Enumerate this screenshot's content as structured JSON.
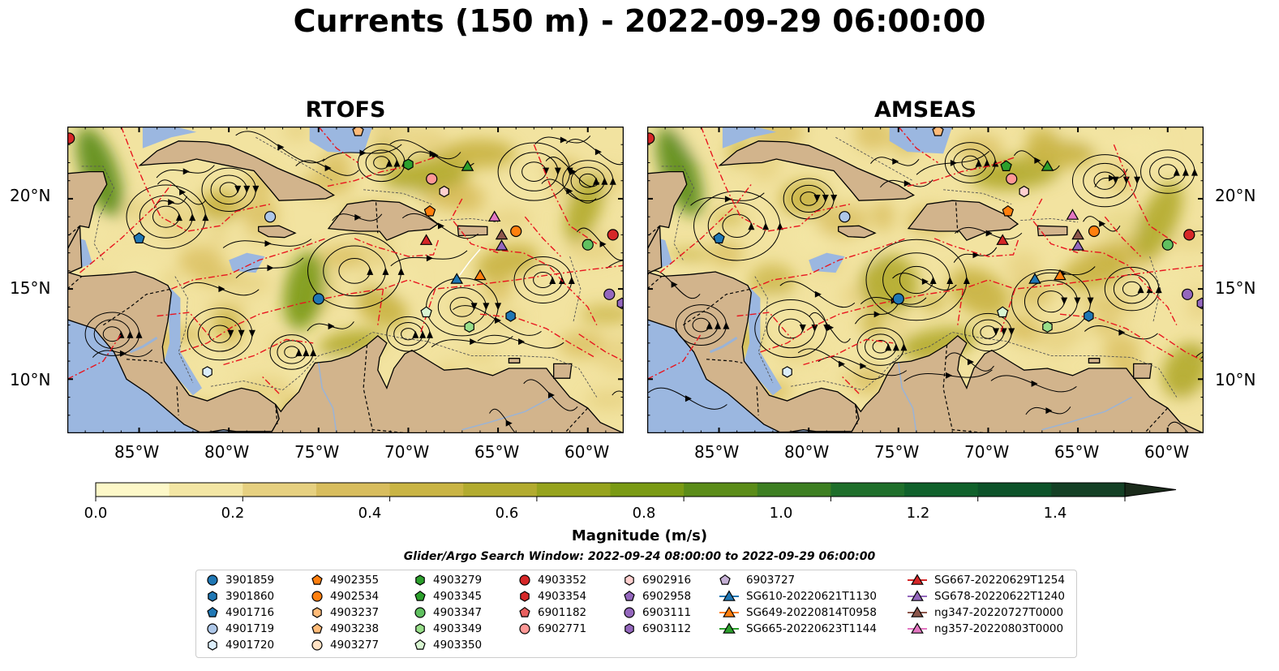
{
  "title": "Currents (150 m) - 2022-09-29 06:00:00",
  "panels": [
    {
      "title": "RTOFS"
    },
    {
      "title": "AMSEAS"
    }
  ],
  "map": {
    "lon_ticks": [
      "85°W",
      "80°W",
      "75°W",
      "70°W",
      "65°W",
      "60°W"
    ],
    "lat_ticks": [
      "20°N",
      "15°N",
      "10°N"
    ],
    "colors": {
      "land": "#d2b48c",
      "water_deep": "#9bb7e0",
      "coastline": "#000000",
      "eez_boundary": "#e8161f",
      "streamline": "#000000"
    }
  },
  "colorbar": {
    "label": "Magnitude (m/s)",
    "ticks": [
      "0.0",
      "0.2",
      "0.4",
      "0.6",
      "0.8",
      "1.0",
      "1.2",
      "1.4"
    ],
    "range": [
      0.0,
      1.5
    ],
    "extend": "max",
    "colors": [
      "#fdf8c8",
      "#f3e6a4",
      "#e6d080",
      "#d8bd5e",
      "#c9b444",
      "#b2ab2f",
      "#96a31d",
      "#7a9a14",
      "#5b8c19",
      "#3d7f22",
      "#1f6f2b",
      "#10612b",
      "#0c5229",
      "#144025",
      "#18331f",
      "#1a2a1a"
    ]
  },
  "search_window": "Glider/Argo Search Window: 2022-09-24 08:00:00 to 2022-09-29 06:00:00",
  "legend": {
    "columns": [
      [
        {
          "label": "3901859",
          "marker": "circle",
          "color": "#1f77b4"
        },
        {
          "label": "3901860",
          "marker": "hexagon",
          "color": "#1f77b4"
        },
        {
          "label": "4901716",
          "marker": "pentagon",
          "color": "#1f77b4"
        },
        {
          "label": "4901719",
          "marker": "circle",
          "color": "#aec7e8"
        },
        {
          "label": "4901720",
          "marker": "hexagon",
          "color": "#dceefa"
        }
      ],
      [
        {
          "label": "4902355",
          "marker": "pentagon",
          "color": "#ff7f0e"
        },
        {
          "label": "4902534",
          "marker": "circle",
          "color": "#ff7f0e"
        },
        {
          "label": "4903237",
          "marker": "hexagon",
          "color": "#ffbb78"
        },
        {
          "label": "4903238",
          "marker": "pentagon",
          "color": "#ffbb78"
        },
        {
          "label": "4903277",
          "marker": "circle",
          "color": "#ffe2c4"
        }
      ],
      [
        {
          "label": "4903279",
          "marker": "hexagon",
          "color": "#2ca02c"
        },
        {
          "label": "4903345",
          "marker": "pentagon",
          "color": "#2ca02c"
        },
        {
          "label": "4903347",
          "marker": "circle",
          "color": "#60c060"
        },
        {
          "label": "4903349",
          "marker": "hexagon",
          "color": "#98df8a"
        },
        {
          "label": "4903350",
          "marker": "pentagon",
          "color": "#d9f5d2"
        }
      ],
      [
        {
          "label": "4903352",
          "marker": "circle",
          "color": "#d62728"
        },
        {
          "label": "4903354",
          "marker": "hexagon",
          "color": "#d62728"
        },
        {
          "label": "6901182",
          "marker": "pentagon",
          "color": "#e8605f"
        },
        {
          "label": "6902771",
          "marker": "circle",
          "color": "#ff9896"
        }
      ],
      [
        {
          "label": "6902916",
          "marker": "hexagon",
          "color": "#ffd0cf"
        },
        {
          "label": "6902958",
          "marker": "pentagon",
          "color": "#9467bd"
        },
        {
          "label": "6903111",
          "marker": "circle",
          "color": "#9467bd"
        },
        {
          "label": "6903112",
          "marker": "hexagon",
          "color": "#9467bd"
        }
      ],
      [
        {
          "label": "6903727",
          "marker": "pentagon",
          "color": "#c5b0d5"
        },
        {
          "label": "SG610-20220621T1130",
          "marker": "triangle-line",
          "color": "#1f77b4"
        },
        {
          "label": "SG649-20220814T0958",
          "marker": "triangle-line",
          "color": "#ff7f0e"
        },
        {
          "label": "SG665-20220623T1144",
          "marker": "triangle-line",
          "color": "#2ca02c"
        }
      ],
      [
        {
          "label": "SG667-20220629T1254",
          "marker": "triangle-line",
          "color": "#d62728"
        },
        {
          "label": "SG678-20220622T1240",
          "marker": "triangle-line",
          "color": "#9467bd"
        },
        {
          "label": "ng347-20220727T0000",
          "marker": "triangle-line",
          "color": "#8c564b"
        },
        {
          "label": "ng357-20220803T0000",
          "marker": "triangle-line",
          "color": "#e377c2"
        }
      ]
    ]
  }
}
